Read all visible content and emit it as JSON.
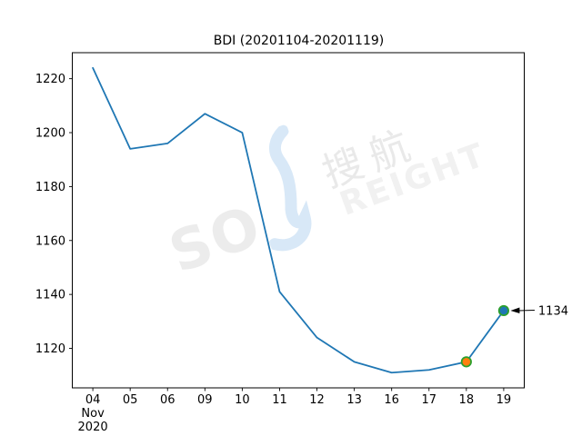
{
  "figure": {
    "background": "#ffffff",
    "title": "BDI (20201104-20201119)"
  },
  "chart_data": {
    "type": "line",
    "title": "BDI (20201104-20201119)",
    "categories": [
      "04",
      "05",
      "06",
      "09",
      "10",
      "11",
      "12",
      "13",
      "16",
      "17",
      "18",
      "19"
    ],
    "x_first_tick_sublines": [
      "Nov",
      "2020"
    ],
    "values": [
      1224,
      1194,
      1196,
      1207,
      1200,
      1141,
      1124,
      1115,
      1111,
      1112,
      1115,
      1134
    ],
    "yticks": [
      1120,
      1140,
      1160,
      1180,
      1200,
      1220
    ],
    "ylim": [
      1105.35,
      1229.65
    ],
    "xlim": [
      -0.55,
      11.55
    ],
    "grid": false,
    "legend": false,
    "line_color": "#1f77b4",
    "line_width": 1.8,
    "axis_color": "#000000",
    "markers": [
      {
        "category": "18",
        "index": 10,
        "value": 1115,
        "fill": "#ff7f0e",
        "edge": "#2ca02c"
      },
      {
        "category": "19",
        "index": 11,
        "value": 1134,
        "fill": "#1f77b4",
        "edge": "#2ca02c"
      }
    ],
    "annotation": {
      "text": "1134",
      "index": 11,
      "value": 1134,
      "arrow_color": "#000000"
    }
  },
  "watermark": {
    "text_so": "SO",
    "text_cn": "搜航",
    "text_rest": "REIGHT",
    "letter_color": "#ececec",
    "swoosh_color": "#d8e8f7"
  }
}
